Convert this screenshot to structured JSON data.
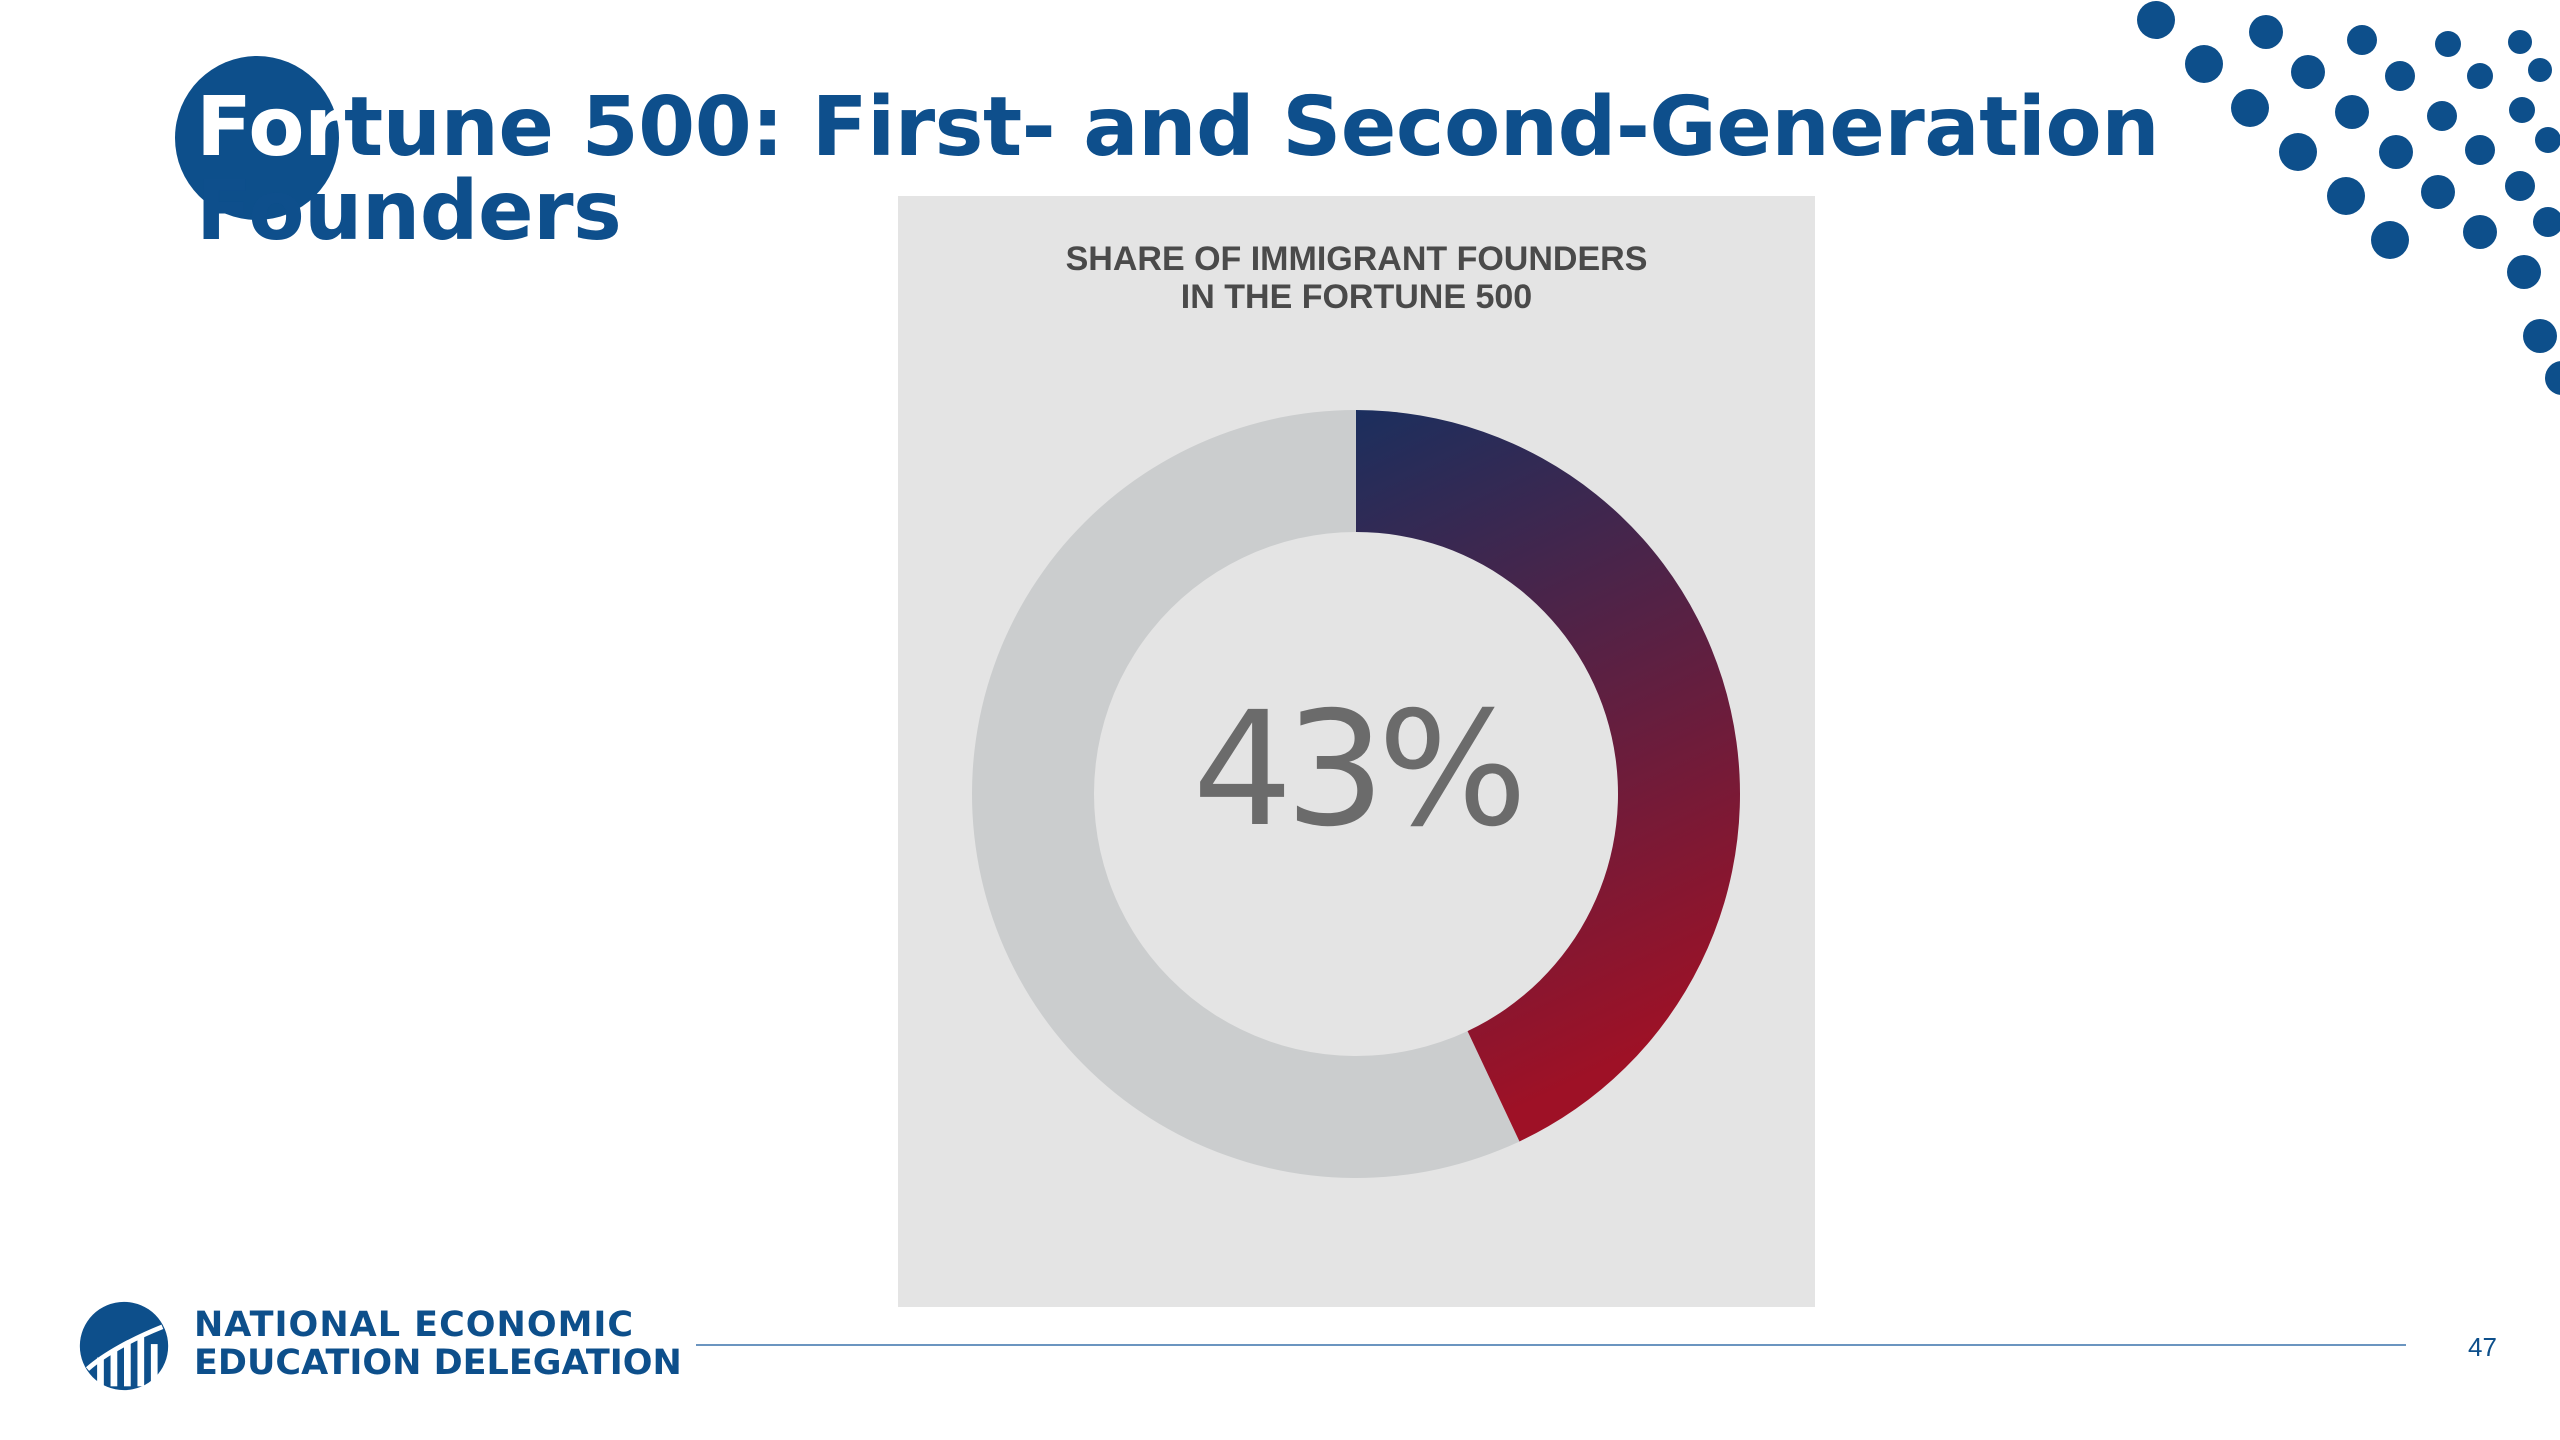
{
  "slide": {
    "title_lead": "For",
    "title_rest": "tune 500: First- and Second-Generation",
    "title_line2": "Founders",
    "page_number": "47"
  },
  "chart_data": {
    "type": "pie",
    "title": "SHARE OF IMMIGRANT FOUNDERS IN THE FORTUNE 500",
    "title_lines": [
      "SHARE OF IMMIGRANT FOUNDERS",
      "IN THE FORTUNE 500"
    ],
    "center_label": "43%",
    "slices": [
      {
        "value": 43,
        "color": "#8e1328"
      },
      {
        "value": 57,
        "color": "#cbcdce"
      }
    ],
    "gradient_colors": [
      "#1b2f5e",
      "#9e1126"
    ],
    "hole": "donut"
  },
  "footer": {
    "org_line1": "NATIONAL ECONOMIC",
    "org_line2": "EDUCATION DELEGATION"
  },
  "colors": {
    "brand_blue": "#0d4f8b",
    "panel_background": "#e4e4e4"
  }
}
